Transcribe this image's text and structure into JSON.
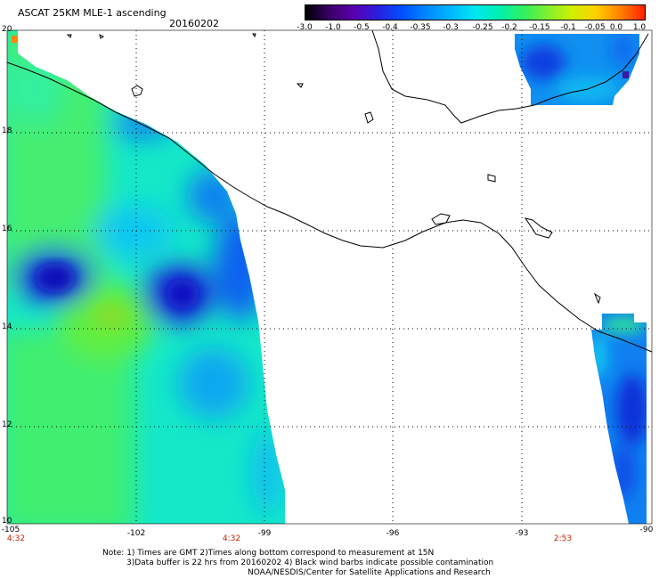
{
  "title": "ASCAT 25KM MLE-1 ascending",
  "date": "20160202",
  "colorbar": {
    "labels": [
      "-3.0",
      "-1.0",
      "-0.5",
      "-0.4",
      "-0.35",
      "-0.3",
      "-0.25",
      "-0.2",
      "-0.15",
      "-0.1",
      "-0.05",
      "0.0",
      "1.0"
    ],
    "colors": [
      "#000000",
      "#3a0066",
      "#5a00b0",
      "#2a20e0",
      "#0050ff",
      "#0088ff",
      "#00b8ff",
      "#00e8f0",
      "#00f0b0",
      "#30f060",
      "#80f030",
      "#d0f000",
      "#ffd000",
      "#ff8000",
      "#ff2000"
    ]
  },
  "axes": {
    "lat_labels": [
      "20",
      "18",
      "16",
      "14",
      "12",
      "10"
    ],
    "lon_labels": [
      "-105",
      "-102",
      "-99",
      "-96",
      "-93",
      "-90"
    ],
    "time_labels": [
      "4:32",
      "4:32",
      "2:53"
    ]
  },
  "notes": [
    "Note: 1) Times are GMT 2)Times along bottom correspond to measurement at 15N",
    "3)Data buffer is 22 hrs from 20160202 4) Black wind barbs indicate possible contamination",
    "NOAA/NESDIS/Center for Satellite Applications and Research"
  ]
}
